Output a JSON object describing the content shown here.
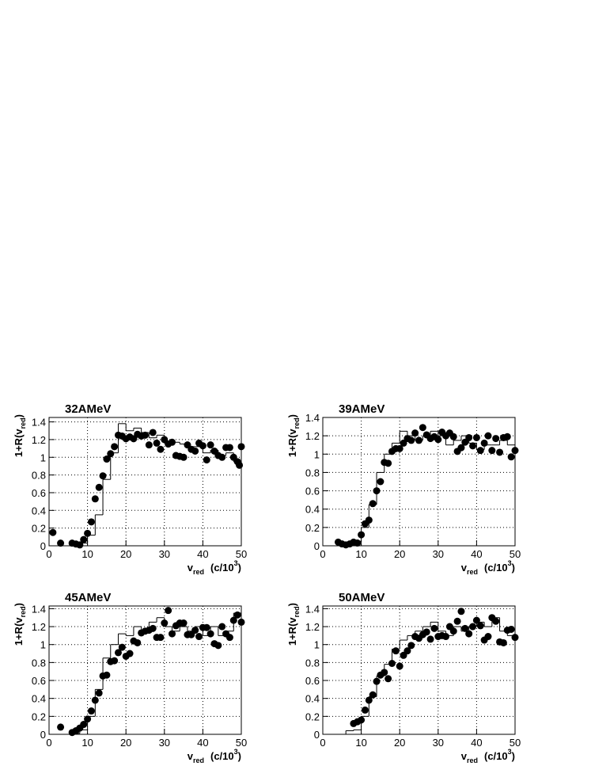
{
  "chart_data": [
    {
      "type": "scatter",
      "title": "32AMeV",
      "x_label": {
        "text": "v",
        "sub": "red",
        "unit": "(c/10",
        "sup": "3",
        "close": ")"
      },
      "y_label": {
        "text": "1+R(v",
        "sub": "red",
        "close": ")"
      },
      "xlim": [
        0,
        50
      ],
      "ylim": [
        0,
        1.45
      ],
      "xticks": [
        0,
        10,
        20,
        30,
        40,
        50
      ],
      "yticks": [
        0,
        0.2,
        0.4,
        0.6,
        0.8,
        1,
        1.2,
        1.4
      ],
      "grid": true,
      "series": [
        {
          "color": "#000000",
          "x": [
            1,
            3,
            6,
            7,
            8,
            9,
            10,
            11,
            12,
            13,
            14,
            15,
            16,
            17,
            18,
            19,
            20,
            21,
            22,
            23,
            24,
            25,
            26,
            27,
            28,
            29,
            30,
            31,
            32,
            33,
            34,
            35,
            36,
            37,
            38,
            39,
            40,
            41,
            42,
            43,
            44,
            45,
            46,
            47,
            48,
            49,
            49.5,
            50
          ],
          "values": [
            0.15,
            0.03,
            0.03,
            0.02,
            0.01,
            0.07,
            0.14,
            0.27,
            0.53,
            0.66,
            0.79,
            0.98,
            1.04,
            1.12,
            1.25,
            1.24,
            1.21,
            1.23,
            1.21,
            1.26,
            1.24,
            1.25,
            1.14,
            1.28,
            1.16,
            1.09,
            1.2,
            1.15,
            1.17,
            1.02,
            1.01,
            1.0,
            1.14,
            1.09,
            1.07,
            1.16,
            1.13,
            0.97,
            1.14,
            1.07,
            1.02,
            1.0,
            1.11,
            1.11,
            1.0,
            0.95,
            0.91,
            1.12
          ]
        }
      ],
      "step": {
        "color": "#000000",
        "bins": [
          0,
          2,
          4,
          6,
          8,
          10,
          12,
          14,
          16,
          18,
          20,
          22,
          24,
          26,
          28,
          30,
          32,
          34,
          36,
          38,
          40,
          42,
          44,
          46,
          48,
          50
        ],
        "values": [
          0,
          0,
          0,
          0.02,
          0.03,
          0.12,
          0.35,
          0.75,
          1.05,
          1.38,
          1.3,
          1.33,
          1.28,
          1.22,
          1.25,
          1.18,
          1.17,
          1.15,
          1.12,
          1.12,
          1.05,
          1.08,
          1.02,
          1.05,
          0.95
        ]
      }
    },
    {
      "type": "scatter",
      "title": "39AMeV",
      "x_label": {
        "text": "v",
        "sub": "red",
        "unit": "(c/10",
        "sup": "3",
        "close": ")"
      },
      "y_label": {
        "text": "1+R(v",
        "sub": "red",
        "close": ")"
      },
      "xlim": [
        0,
        50
      ],
      "ylim": [
        0,
        1.4
      ],
      "xticks": [
        0,
        10,
        20,
        30,
        40,
        50
      ],
      "yticks": [
        0,
        0.2,
        0.4,
        0.6,
        0.8,
        1,
        1.2,
        1.4
      ],
      "grid": true,
      "series": [
        {
          "color": "#000000",
          "x": [
            4,
            5,
            6,
            7,
            8,
            9,
            10,
            11,
            12,
            13,
            14,
            15,
            16,
            17,
            18,
            19,
            20,
            21,
            22,
            23,
            24,
            25,
            26,
            27,
            28,
            29,
            30,
            31,
            32,
            33,
            34,
            35,
            36,
            37,
            38,
            39,
            40,
            41,
            42,
            43,
            44,
            45,
            46,
            47,
            48,
            49,
            50
          ],
          "values": [
            0.04,
            0.02,
            0.01,
            0.02,
            0.04,
            0.03,
            0.12,
            0.24,
            0.28,
            0.46,
            0.6,
            0.7,
            0.91,
            0.9,
            1.03,
            1.06,
            1.06,
            1.12,
            1.17,
            1.15,
            1.23,
            1.15,
            1.29,
            1.21,
            1.17,
            1.19,
            1.16,
            1.24,
            1.2,
            1.23,
            1.19,
            1.03,
            1.07,
            1.13,
            1.18,
            1.09,
            1.18,
            1.04,
            1.12,
            1.2,
            1.04,
            1.17,
            1.02,
            1.18,
            1.19,
            0.97,
            1.04
          ]
        }
      ],
      "step": {
        "color": "#000000",
        "bins": [
          0,
          2,
          4,
          6,
          8,
          10,
          12,
          14,
          16,
          18,
          20,
          22,
          24,
          26,
          28,
          30,
          32,
          34,
          36,
          38,
          40,
          42,
          44,
          46,
          48,
          50
        ],
        "values": [
          0,
          0,
          0.02,
          0.03,
          0.05,
          0.2,
          0.45,
          0.8,
          1.0,
          1.12,
          1.25,
          1.2,
          1.15,
          1.2,
          1.25,
          1.2,
          1.1,
          1.15,
          1.2,
          1.12,
          1.05,
          1.1,
          1.1,
          1.15,
          1.1
        ]
      }
    },
    {
      "type": "scatter",
      "title": "45AMeV",
      "x_label": {
        "text": "v",
        "sub": "red",
        "unit": "(c/10",
        "sup": "3",
        "close": ")"
      },
      "y_label": {
        "text": "1+R(v",
        "sub": "red",
        "close": ")"
      },
      "xlim": [
        0,
        50
      ],
      "ylim": [
        0,
        1.43
      ],
      "xticks": [
        0,
        10,
        20,
        30,
        40,
        50
      ],
      "yticks": [
        0,
        0.2,
        0.4,
        0.6,
        0.8,
        1,
        1.2,
        1.4
      ],
      "grid": true,
      "series": [
        {
          "color": "#000000",
          "x": [
            3,
            6,
            7,
            8,
            9,
            10,
            11,
            12,
            13,
            14,
            15,
            16,
            17,
            18,
            19,
            20,
            21,
            22,
            23,
            24,
            25,
            26,
            27,
            28,
            29,
            30,
            31,
            32,
            33,
            34,
            35,
            36,
            37,
            38,
            39,
            40,
            41,
            42,
            43,
            44,
            45,
            46,
            47,
            48,
            49,
            50
          ],
          "values": [
            0.08,
            0.02,
            0.04,
            0.07,
            0.11,
            0.17,
            0.26,
            0.38,
            0.46,
            0.65,
            0.66,
            0.81,
            0.82,
            0.91,
            0.97,
            0.87,
            0.9,
            1.04,
            1.02,
            1.13,
            1.15,
            1.16,
            1.18,
            1.08,
            1.08,
            1.24,
            1.38,
            1.12,
            1.21,
            1.24,
            1.24,
            1.11,
            1.11,
            1.16,
            1.09,
            1.19,
            1.19,
            1.12,
            1.01,
            0.99,
            1.2,
            1.12,
            1.08,
            1.27,
            1.33,
            1.25
          ]
        }
      ],
      "step": {
        "color": "#000000",
        "bins": [
          0,
          2,
          4,
          6,
          8,
          10,
          12,
          14,
          16,
          18,
          20,
          22,
          24,
          26,
          28,
          30,
          32,
          34,
          36,
          38,
          40,
          42,
          44,
          46,
          48,
          50
        ],
        "values": [
          0,
          0,
          0,
          0.01,
          0.05,
          0.2,
          0.5,
          0.85,
          1.0,
          1.12,
          1.1,
          1.2,
          1.15,
          1.25,
          1.3,
          1.2,
          1.15,
          1.2,
          1.15,
          1.2,
          1.1,
          1.2,
          1.1,
          1.15,
          1.35
        ]
      }
    },
    {
      "type": "scatter",
      "title": "50AMeV",
      "x_label": {
        "text": "v",
        "sub": "red",
        "unit": "(c/10",
        "sup": "3",
        "close": ")"
      },
      "y_label": {
        "text": "1+R(v",
        "sub": "red",
        "close": ")"
      },
      "xlim": [
        0,
        50
      ],
      "ylim": [
        0,
        1.43
      ],
      "xticks": [
        0,
        10,
        20,
        30,
        40,
        50
      ],
      "yticks": [
        0,
        0.2,
        0.4,
        0.6,
        0.8,
        1,
        1.2,
        1.4
      ],
      "grid": true,
      "series": [
        {
          "color": "#000000",
          "x": [
            8,
            9,
            10,
            11,
            12,
            13,
            14,
            15,
            16,
            17,
            18,
            19,
            20,
            21,
            22,
            23,
            24,
            25,
            26,
            27,
            28,
            29,
            30,
            31,
            32,
            33,
            34,
            35,
            36,
            37,
            38,
            39,
            40,
            41,
            42,
            43,
            44,
            45,
            46,
            47,
            48,
            49,
            50
          ],
          "values": [
            0.12,
            0.14,
            0.16,
            0.27,
            0.38,
            0.44,
            0.59,
            0.66,
            0.69,
            0.62,
            0.79,
            0.93,
            0.76,
            0.88,
            0.93,
            0.99,
            1.09,
            1.07,
            1.11,
            1.14,
            1.06,
            1.18,
            1.09,
            1.1,
            1.09,
            1.2,
            1.15,
            1.26,
            1.37,
            1.18,
            1.12,
            1.2,
            1.27,
            1.21,
            1.05,
            1.09,
            1.3,
            1.26,
            1.03,
            1.02,
            1.16,
            1.17,
            1.08
          ]
        }
      ],
      "step": {
        "color": "#000000",
        "bins": [
          0,
          2,
          4,
          6,
          8,
          10,
          12,
          14,
          16,
          18,
          20,
          22,
          24,
          26,
          28,
          30,
          32,
          34,
          36,
          38,
          40,
          42,
          44,
          46,
          48,
          50
        ],
        "values": [
          0,
          0,
          0,
          0.04,
          0.05,
          0.2,
          0.42,
          0.65,
          0.78,
          0.95,
          1.05,
          1.1,
          1.15,
          1.2,
          1.25,
          1.15,
          1.1,
          1.2,
          1.15,
          1.2,
          1.25,
          1.2,
          1.3,
          1.15,
          1.1
        ]
      }
    }
  ]
}
